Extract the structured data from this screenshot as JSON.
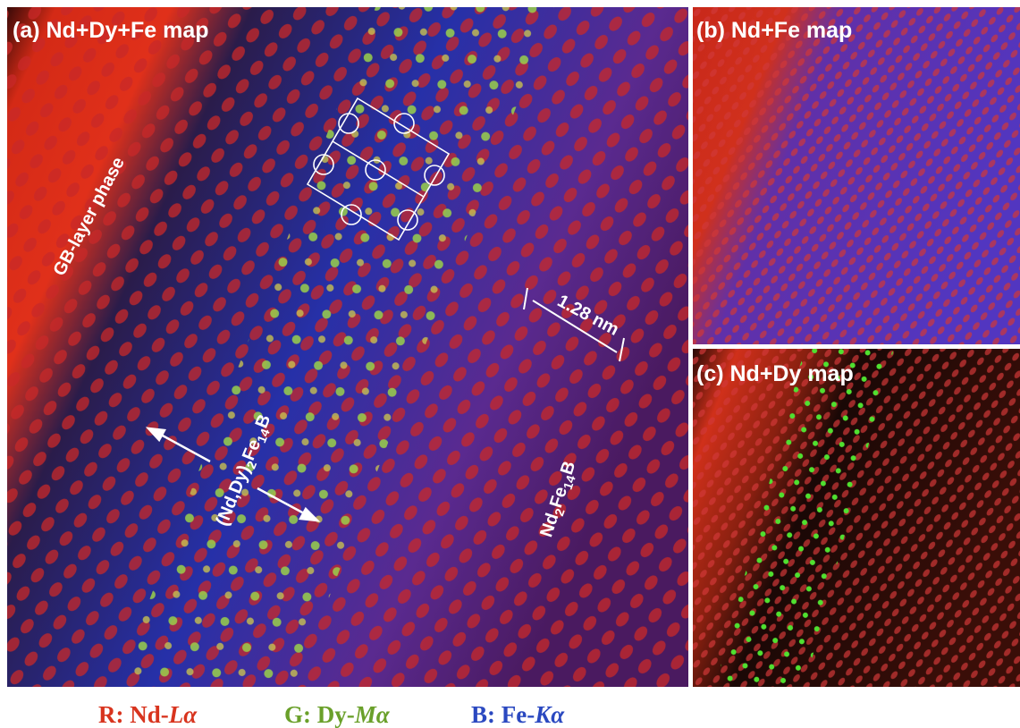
{
  "panels": [
    {
      "label": "(a) Nd+Dy+Fe map",
      "annotations": {
        "gb_layer": "GB-layer phase",
        "spacing": "1.28 nm",
        "shell": [
          "(Nd,Dy)",
          "2",
          "Fe",
          "14",
          "B"
        ],
        "core": [
          "Nd",
          "2",
          "Fe",
          "14",
          "B"
        ]
      }
    },
    {
      "label": "(b) Nd+Fe map"
    },
    {
      "label": "(c) Nd+Dy map"
    }
  ],
  "legend": [
    {
      "prefix": "R: Nd-",
      "symbol": "Lα"
    },
    {
      "prefix": "G: Dy-",
      "symbol": "Mα"
    },
    {
      "prefix": "B: Fe-",
      "symbol": "Kα"
    }
  ]
}
